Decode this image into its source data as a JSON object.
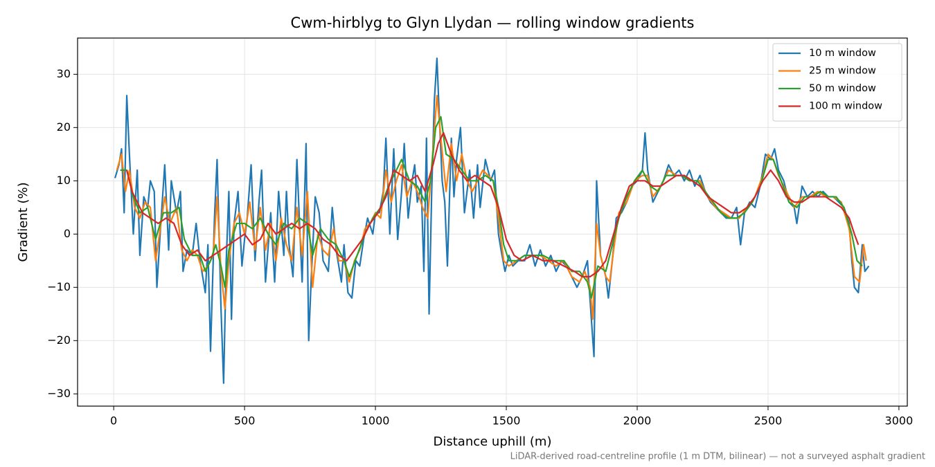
{
  "chart_data": {
    "type": "line",
    "title": "Cwm-hirblyg to Glyn Llydan — rolling window gradients",
    "xlabel": "Distance uphill (m)",
    "ylabel": "Gradient (%)",
    "footnote": "LiDAR-derived road-centreline profile (1 m DTM, bilinear) — not a surveyed asphalt gradient",
    "xlim": [
      -138,
      3032
    ],
    "ylim": [
      -32.3,
      36.8
    ],
    "xticks": [
      0,
      500,
      1000,
      1500,
      2000,
      2500,
      3000
    ],
    "yticks": [
      {
        "value": -30,
        "label": "−30"
      },
      {
        "value": -20,
        "label": "−20"
      },
      {
        "value": -10,
        "label": "−10"
      },
      0,
      10,
      20,
      30
    ],
    "grid": true,
    "legend": "upper right",
    "series": [
      {
        "name": "10 m window",
        "color": "#1f77b4",
        "x": [
          5,
          20,
          30,
          40,
          50,
          60,
          75,
          90,
          100,
          115,
          130,
          140,
          155,
          165,
          180,
          195,
          210,
          220,
          240,
          255,
          265,
          280,
          300,
          315,
          330,
          350,
          360,
          370,
          385,
          395,
          410,
          420,
          430,
          440,
          450,
          460,
          475,
          490,
          500,
          510,
          525,
          540,
          555,
          565,
          580,
          600,
          615,
          630,
          650,
          660,
          670,
          685,
          700,
          710,
          720,
          735,
          745,
          755,
          770,
          785,
          800,
          820,
          835,
          850,
          870,
          880,
          895,
          910,
          925,
          940,
          955,
          970,
          990,
          1000,
          1015,
          1030,
          1040,
          1055,
          1070,
          1085,
          1100,
          1110,
          1125,
          1140,
          1150,
          1160,
          1175,
          1185,
          1195,
          1205,
          1215,
          1225,
          1235,
          1245,
          1255,
          1265,
          1275,
          1290,
          1300,
          1310,
          1325,
          1340,
          1360,
          1375,
          1390,
          1400,
          1420,
          1440,
          1455,
          1470,
          1480,
          1495,
          1510,
          1525,
          1545,
          1570,
          1590,
          1610,
          1630,
          1650,
          1670,
          1690,
          1710,
          1730,
          1750,
          1770,
          1790,
          1810,
          1825,
          1835,
          1845,
          1860,
          1880,
          1890,
          1905,
          1920,
          1940,
          1960,
          1980,
          2000,
          2020,
          2030,
          2040,
          2060,
          2080,
          2100,
          2120,
          2140,
          2160,
          2180,
          2200,
          2220,
          2240,
          2260,
          2280,
          2300,
          2320,
          2340,
          2360,
          2380,
          2395,
          2410,
          2430,
          2450,
          2470,
          2490,
          2510,
          2525,
          2540,
          2560,
          2580,
          2600,
          2610,
          2630,
          2650,
          2670,
          2690,
          2710,
          2730,
          2750,
          2770,
          2790,
          2810,
          2820,
          2830,
          2845,
          2860,
          2870,
          2885
        ],
        "values": [
          10.5,
          13,
          16,
          4,
          26,
          15,
          0,
          12,
          -4,
          7,
          5,
          10,
          8,
          -10,
          2,
          13,
          -3,
          10,
          4,
          8,
          -7,
          -3,
          -4,
          2,
          -5,
          -11,
          -2,
          -22,
          3,
          14,
          -14,
          -28,
          -5,
          8,
          -16,
          2,
          8,
          -6,
          -1,
          3,
          13,
          -5,
          6,
          12,
          -9,
          4,
          -9,
          8,
          -4,
          8,
          -2,
          -8,
          14,
          2,
          -9,
          17,
          -20,
          -8,
          7,
          4,
          -5,
          -7,
          5,
          -3,
          -9,
          -2,
          -11,
          -12,
          -5,
          -6,
          -1,
          3,
          0,
          4,
          4,
          8,
          18,
          0,
          16,
          -1,
          8,
          17,
          3,
          10,
          13,
          6,
          9,
          -7,
          18,
          -15,
          8,
          25,
          33,
          21,
          10,
          6,
          -6,
          18,
          7,
          14,
          20,
          4,
          12,
          3,
          13,
          5,
          14,
          10,
          12,
          0,
          -3,
          -7,
          -4,
          -6,
          -5,
          -5,
          -2,
          -6,
          -3,
          -6,
          -4,
          -7,
          -5,
          -6,
          -8,
          -10,
          -8,
          -5,
          -16,
          -23,
          10,
          -4,
          -8,
          -12,
          -5,
          3,
          4,
          6,
          9,
          10,
          12,
          19,
          12,
          6,
          8,
          10,
          13,
          11,
          12,
          10,
          12,
          9,
          11,
          8,
          6,
          5,
          4,
          3,
          3,
          5,
          -2,
          4,
          6,
          5,
          9,
          15,
          14,
          16,
          12,
          10,
          6,
          5,
          2,
          9,
          7,
          8,
          7,
          8,
          7,
          7,
          6,
          5,
          2,
          -5,
          -10,
          -11,
          -2,
          -7,
          -6
        ]
      },
      {
        "name": "25 m window",
        "color": "#ff7f0e",
        "x": [
          12,
          30,
          45,
          60,
          80,
          100,
          120,
          140,
          160,
          175,
          195,
          215,
          240,
          260,
          280,
          300,
          320,
          340,
          360,
          380,
          395,
          410,
          425,
          440,
          460,
          480,
          500,
          520,
          540,
          560,
          580,
          600,
          620,
          640,
          660,
          680,
          700,
          720,
          740,
          760,
          780,
          800,
          820,
          840,
          860,
          880,
          900,
          920,
          940,
          960,
          980,
          1000,
          1020,
          1040,
          1060,
          1080,
          1100,
          1120,
          1140,
          1160,
          1180,
          1200,
          1220,
          1235,
          1250,
          1270,
          1290,
          1310,
          1330,
          1350,
          1370,
          1390,
          1410,
          1430,
          1450,
          1470,
          1490,
          1510,
          1540,
          1570,
          1600,
          1630,
          1660,
          1690,
          1720,
          1750,
          1780,
          1800,
          1820,
          1830,
          1845,
          1860,
          1880,
          1895,
          1910,
          1930,
          1960,
          1990,
          2020,
          2040,
          2060,
          2090,
          2120,
          2150,
          2180,
          2210,
          2240,
          2270,
          2300,
          2330,
          2360,
          2390,
          2420,
          2450,
          2480,
          2500,
          2520,
          2540,
          2570,
          2600,
          2630,
          2660,
          2690,
          2720,
          2750,
          2780,
          2810,
          2830,
          2850,
          2865,
          2875
        ],
        "values": [
          12,
          15,
          8,
          12,
          5,
          3,
          6,
          5,
          -5,
          0,
          7,
          2,
          5,
          -3,
          -5,
          -3,
          -4,
          -7,
          -6,
          -4,
          7,
          -7,
          -14,
          -5,
          2,
          4,
          0,
          6,
          -3,
          5,
          -3,
          2,
          -5,
          3,
          -2,
          -5,
          5,
          -4,
          8,
          -10,
          0,
          -3,
          -4,
          1,
          -5,
          -5,
          -9,
          -5,
          -3,
          1,
          2,
          4,
          3,
          12,
          6,
          10,
          13,
          7,
          10,
          8,
          5,
          3,
          16,
          26,
          18,
          8,
          17,
          10,
          15,
          10,
          8,
          10,
          12,
          11,
          10,
          3,
          -5,
          -6,
          -5,
          -4,
          -4,
          -4,
          -5,
          -6,
          -5,
          -8,
          -9,
          -7,
          -10,
          -16,
          2,
          -4,
          -8,
          -9,
          -3,
          4,
          6,
          10,
          11,
          11,
          7,
          9,
          12,
          11,
          11,
          10,
          10,
          7,
          5,
          4,
          3,
          3,
          5,
          7,
          11,
          15,
          14,
          11,
          8,
          5,
          7,
          7,
          8,
          7,
          7,
          6,
          1,
          -8,
          -9,
          -2,
          -5
        ]
      },
      {
        "name": "50 m window",
        "color": "#2ca02c",
        "x": [
          25,
          50,
          75,
          100,
          130,
          160,
          190,
          220,
          250,
          270,
          300,
          330,
          350,
          370,
          390,
          410,
          425,
          440,
          470,
          500,
          530,
          560,
          590,
          620,
          650,
          680,
          710,
          740,
          760,
          790,
          820,
          850,
          880,
          900,
          930,
          960,
          990,
          1020,
          1050,
          1080,
          1100,
          1130,
          1160,
          1190,
          1210,
          1230,
          1250,
          1270,
          1300,
          1330,
          1360,
          1390,
          1420,
          1450,
          1470,
          1490,
          1510,
          1540,
          1570,
          1600,
          1640,
          1680,
          1720,
          1750,
          1780,
          1810,
          1825,
          1850,
          1880,
          1900,
          1930,
          1960,
          1990,
          2020,
          2050,
          2080,
          2110,
          2140,
          2170,
          2200,
          2230,
          2260,
          2290,
          2320,
          2350,
          2380,
          2410,
          2440,
          2470,
          2500,
          2520,
          2550,
          2580,
          2610,
          2640,
          2670,
          2700,
          2730,
          2760,
          2790,
          2820,
          2840,
          2860
        ],
        "values": [
          12,
          12,
          7,
          4,
          5,
          -1,
          4,
          4,
          5,
          -1,
          -4,
          -4,
          -7,
          -5,
          -2,
          -6,
          -10,
          -3,
          2,
          2,
          1,
          3,
          0,
          -2,
          2,
          1,
          3,
          2,
          -4,
          1,
          -1,
          -2,
          -5,
          -8,
          -4,
          0,
          3,
          5,
          9,
          12,
          14,
          10,
          9,
          6,
          10,
          20,
          22,
          15,
          14,
          12,
          10,
          10,
          11,
          10,
          5,
          -2,
          -5,
          -5,
          -4,
          -4,
          -4,
          -5,
          -5,
          -7,
          -7,
          -9,
          -12,
          -6,
          -7,
          -3,
          3,
          7,
          10,
          12,
          9,
          8,
          11,
          11,
          11,
          10,
          10,
          8,
          6,
          4,
          3,
          3,
          4,
          6,
          9,
          14,
          14,
          10,
          6,
          5,
          7,
          7,
          8,
          7,
          7,
          5,
          0,
          -5,
          -6
        ]
      },
      {
        "name": "100 m window",
        "color": "#d62728",
        "x": [
          50,
          70,
          90,
          110,
          140,
          170,
          200,
          230,
          260,
          290,
          320,
          350,
          380,
          410,
          440,
          470,
          500,
          530,
          560,
          590,
          620,
          650,
          680,
          710,
          740,
          770,
          800,
          830,
          860,
          890,
          920,
          950,
          980,
          1010,
          1040,
          1070,
          1100,
          1130,
          1160,
          1190,
          1220,
          1240,
          1260,
          1290,
          1320,
          1350,
          1380,
          1410,
          1440,
          1470,
          1500,
          1530,
          1560,
          1600,
          1640,
          1680,
          1720,
          1760,
          1790,
          1820,
          1850,
          1880,
          1910,
          1940,
          1970,
          2000,
          2030,
          2060,
          2090,
          2120,
          2150,
          2180,
          2210,
          2240,
          2270,
          2300,
          2330,
          2360,
          2390,
          2420,
          2450,
          2480,
          2510,
          2540,
          2570,
          2600,
          2630,
          2660,
          2690,
          2720,
          2750,
          2780,
          2810,
          2830,
          2845
        ],
        "values": [
          12,
          8,
          6,
          4,
          3,
          2,
          3,
          2,
          -2,
          -4,
          -3,
          -5,
          -4,
          -3,
          -2,
          -1,
          0,
          -2,
          -1,
          2,
          0,
          1,
          2,
          1,
          2,
          1,
          -1,
          -2,
          -4,
          -5,
          -3,
          -1,
          2,
          4,
          7,
          12,
          11,
          10,
          11,
          8,
          13,
          17,
          19,
          15,
          12,
          10,
          11,
          10,
          9,
          5,
          -1,
          -4,
          -5,
          -4,
          -5,
          -5,
          -6,
          -7,
          -8,
          -8,
          -7,
          -5,
          0,
          5,
          9,
          10,
          10,
          9,
          9,
          10,
          11,
          11,
          10,
          9,
          7,
          6,
          5,
          4,
          4,
          5,
          7,
          10,
          12,
          10,
          7,
          6,
          6,
          7,
          7,
          7,
          6,
          5,
          3,
          0,
          -2
        ]
      }
    ]
  }
}
